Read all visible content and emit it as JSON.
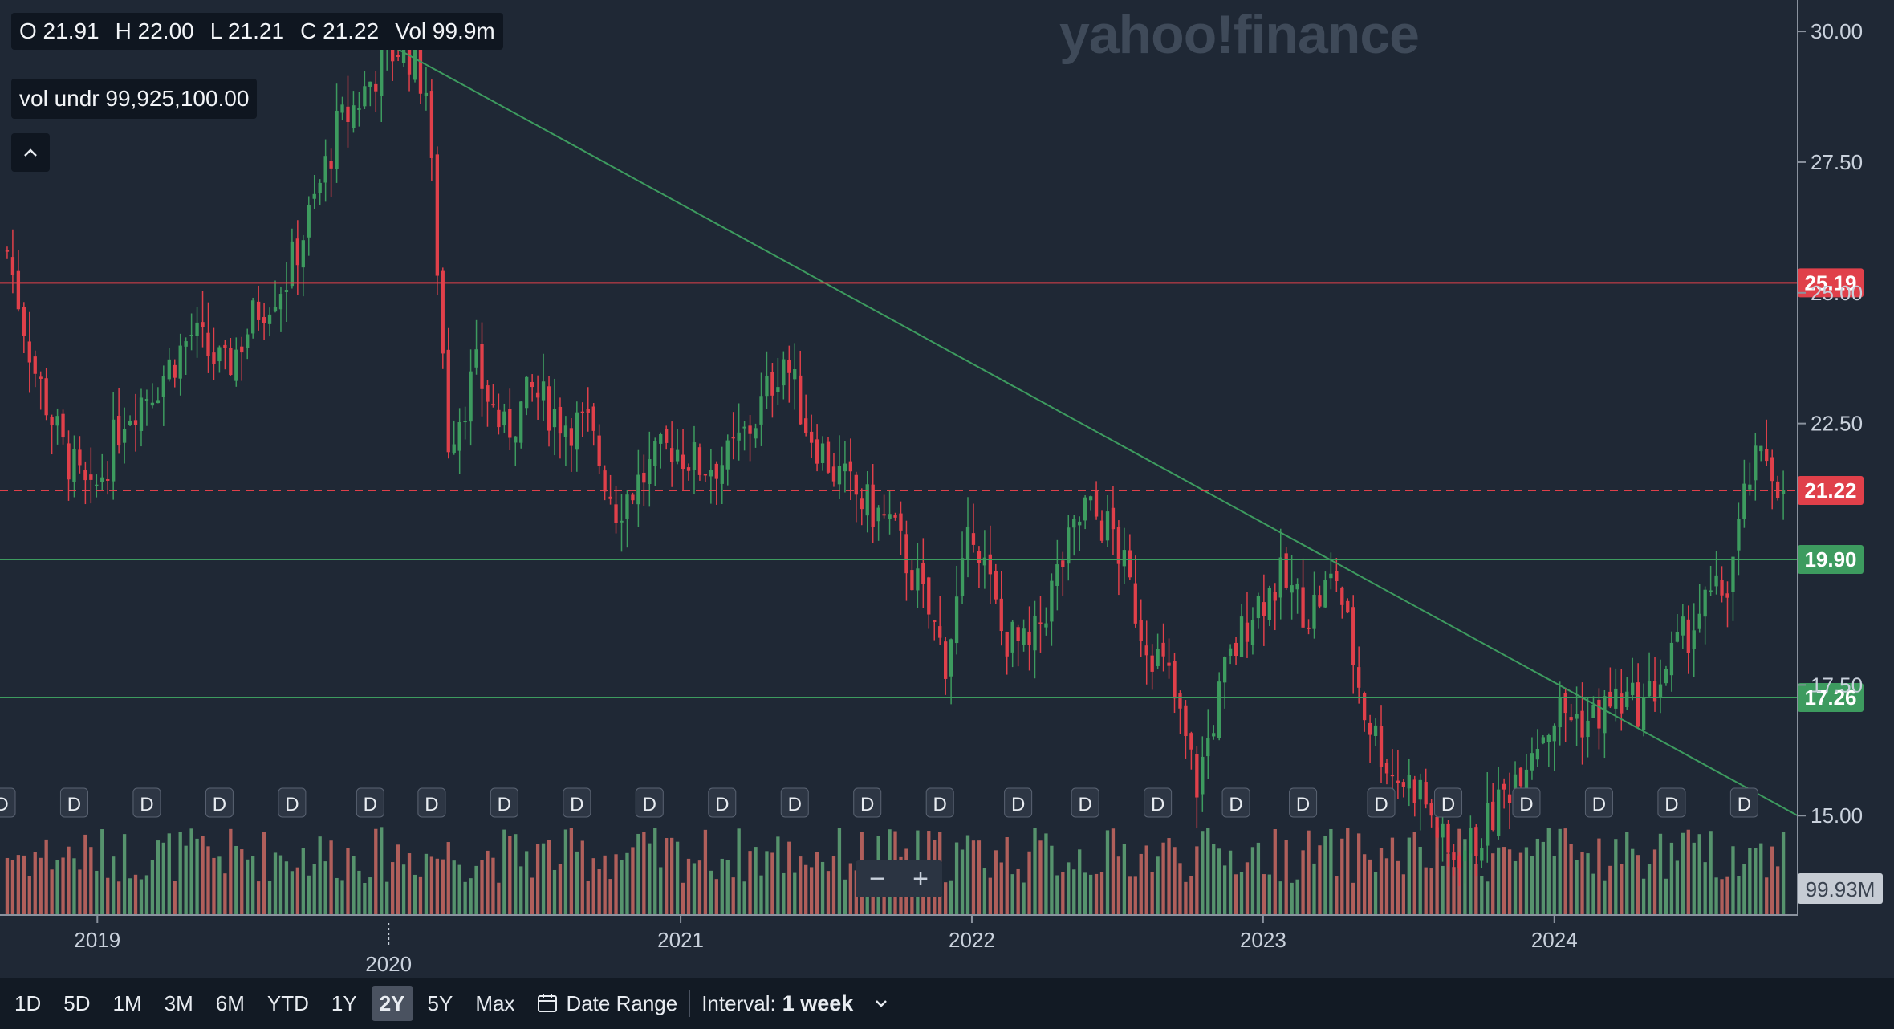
{
  "header": {
    "open": "O 21.91",
    "high": "H 22.00",
    "low": "L 21.21",
    "close": "C 21.22",
    "volume": "Vol 99.9m",
    "volume_under": "vol undr  99,925,100.00",
    "collapse_icon": "chevron-up-icon"
  },
  "watermark": "yahoo!finance",
  "zoom": {
    "minus": "−",
    "plus": "+"
  },
  "toolbar": {
    "ranges": [
      "1D",
      "5D",
      "1M",
      "3M",
      "6M",
      "YTD",
      "1Y",
      "2Y",
      "5Y",
      "Max"
    ],
    "active_range": "2Y",
    "date_range_label": "Date Range",
    "interval_label": "Interval:",
    "interval_value": "1 week"
  },
  "colors": {
    "background": "#1f2835",
    "up": "#3d9b5f",
    "down": "#e0404a",
    "volume_up": "#5c9e73",
    "volume_down": "#c0655f",
    "trendline": "#3d9b5f",
    "resistance": "#e0404a",
    "support": "#3d9b5f"
  },
  "chart_data": {
    "type": "candlestick",
    "interval": "1 week",
    "y_axis": {
      "min": 13.1,
      "max": 30.6,
      "ticks": [
        "30.00",
        "27.50",
        "25.00",
        "22.50",
        "17.50",
        "15.00"
      ]
    },
    "x_axis": {
      "min": "2018-09-01",
      "max": "2024-11-01",
      "ticks": [
        "2019",
        "2020",
        "2021",
        "2022",
        "2023",
        "2024"
      ],
      "bold_tick": "2020"
    },
    "price_series": [
      {
        "date": "2018-09-10",
        "close": 25.8
      },
      {
        "date": "2018-10-15",
        "close": 23.5
      },
      {
        "date": "2018-11-19",
        "close": 22.0
      },
      {
        "date": "2018-12-24",
        "close": 21.0
      },
      {
        "date": "2019-02-04",
        "close": 22.7
      },
      {
        "date": "2019-03-18",
        "close": 23.3
      },
      {
        "date": "2019-04-29",
        "close": 24.2
      },
      {
        "date": "2019-06-10",
        "close": 23.5
      },
      {
        "date": "2019-07-22",
        "close": 24.7
      },
      {
        "date": "2019-08-26",
        "close": 25.3
      },
      {
        "date": "2019-09-30",
        "close": 26.7
      },
      {
        "date": "2019-10-28",
        "close": 28.1
      },
      {
        "date": "2019-11-25",
        "close": 28.7
      },
      {
        "date": "2019-12-23",
        "close": 29.4
      },
      {
        "date": "2020-01-20",
        "close": 29.8
      },
      {
        "date": "2020-02-17",
        "close": 28.9
      },
      {
        "date": "2020-03-16",
        "close": 22.2
      },
      {
        "date": "2020-04-20",
        "close": 23.5
      },
      {
        "date": "2020-05-25",
        "close": 22.3
      },
      {
        "date": "2020-06-29",
        "close": 23.1
      },
      {
        "date": "2020-08-03",
        "close": 22.6
      },
      {
        "date": "2020-09-07",
        "close": 22.4
      },
      {
        "date": "2020-10-12",
        "close": 20.9
      },
      {
        "date": "2020-11-16",
        "close": 21.5
      },
      {
        "date": "2020-12-21",
        "close": 22.1
      },
      {
        "date": "2021-01-25",
        "close": 21.7
      },
      {
        "date": "2021-03-01",
        "close": 21.8
      },
      {
        "date": "2021-04-05",
        "close": 22.6
      },
      {
        "date": "2021-05-10",
        "close": 23.8
      },
      {
        "date": "2021-06-07",
        "close": 22.5
      },
      {
        "date": "2021-07-12",
        "close": 21.6
      },
      {
        "date": "2021-08-16",
        "close": 21.0
      },
      {
        "date": "2021-09-20",
        "close": 20.6
      },
      {
        "date": "2021-10-25",
        "close": 19.4
      },
      {
        "date": "2021-11-29",
        "close": 18.0
      },
      {
        "date": "2022-01-03",
        "close": 20.6
      },
      {
        "date": "2022-02-07",
        "close": 18.5
      },
      {
        "date": "2022-03-14",
        "close": 18.1
      },
      {
        "date": "2022-04-18",
        "close": 19.6
      },
      {
        "date": "2022-05-23",
        "close": 20.9
      },
      {
        "date": "2022-06-27",
        "close": 20.4
      },
      {
        "date": "2022-08-01",
        "close": 18.6
      },
      {
        "date": "2022-09-05",
        "close": 17.6
      },
      {
        "date": "2022-10-10",
        "close": 15.6
      },
      {
        "date": "2022-11-14",
        "close": 17.7
      },
      {
        "date": "2022-12-19",
        "close": 19.0
      },
      {
        "date": "2023-01-23",
        "close": 19.5
      },
      {
        "date": "2023-02-27",
        "close": 18.9
      },
      {
        "date": "2023-04-03",
        "close": 19.6
      },
      {
        "date": "2023-05-08",
        "close": 17.0
      },
      {
        "date": "2023-06-12",
        "close": 15.8
      },
      {
        "date": "2023-07-17",
        "close": 15.5
      },
      {
        "date": "2023-08-21",
        "close": 14.2
      },
      {
        "date": "2023-09-25",
        "close": 14.5
      },
      {
        "date": "2023-10-30",
        "close": 15.4
      },
      {
        "date": "2023-12-04",
        "close": 16.4
      },
      {
        "date": "2024-01-08",
        "close": 17.0
      },
      {
        "date": "2024-02-12",
        "close": 16.8
      },
      {
        "date": "2024-03-18",
        "close": 17.2
      },
      {
        "date": "2024-04-22",
        "close": 17.1
      },
      {
        "date": "2024-05-27",
        "close": 18.0
      },
      {
        "date": "2024-07-01",
        "close": 18.9
      },
      {
        "date": "2024-08-05",
        "close": 19.4
      },
      {
        "date": "2024-09-02",
        "close": 21.5
      },
      {
        "date": "2024-09-23",
        "close": 21.9
      },
      {
        "date": "2024-10-14",
        "close": 21.22
      }
    ],
    "horizontal_lines": [
      {
        "value": 25.19,
        "label": "25.19",
        "color": "#e0404a",
        "style": "solid"
      },
      {
        "value": 21.22,
        "label": "21.22",
        "color": "#e0404a",
        "style": "dashed"
      },
      {
        "value": 19.9,
        "label": "19.90",
        "color": "#3d9b5f",
        "style": "solid"
      },
      {
        "value": 17.26,
        "label": "17.26",
        "color": "#3d9b5f",
        "style": "solid"
      }
    ],
    "trendline": {
      "from": {
        "date": "2019-10-28",
        "value": 30.3
      },
      "to": {
        "date": "2024-11-01",
        "value": 15.0
      }
    },
    "volume_last_label": "99.93M",
    "dividend_marker": "D",
    "dividend_dates": [
      "2018-09-03",
      "2018-12-03",
      "2019-03-04",
      "2019-06-03",
      "2019-09-02",
      "2019-12-09",
      "2020-02-24",
      "2020-05-25",
      "2020-08-24",
      "2020-11-23",
      "2021-02-22",
      "2021-05-24",
      "2021-08-23",
      "2021-11-22",
      "2022-02-28",
      "2022-05-23",
      "2022-08-22",
      "2022-11-28",
      "2023-02-20",
      "2023-05-29",
      "2023-08-21",
      "2023-11-27",
      "2024-02-26",
      "2024-05-27",
      "2024-08-26"
    ]
  }
}
